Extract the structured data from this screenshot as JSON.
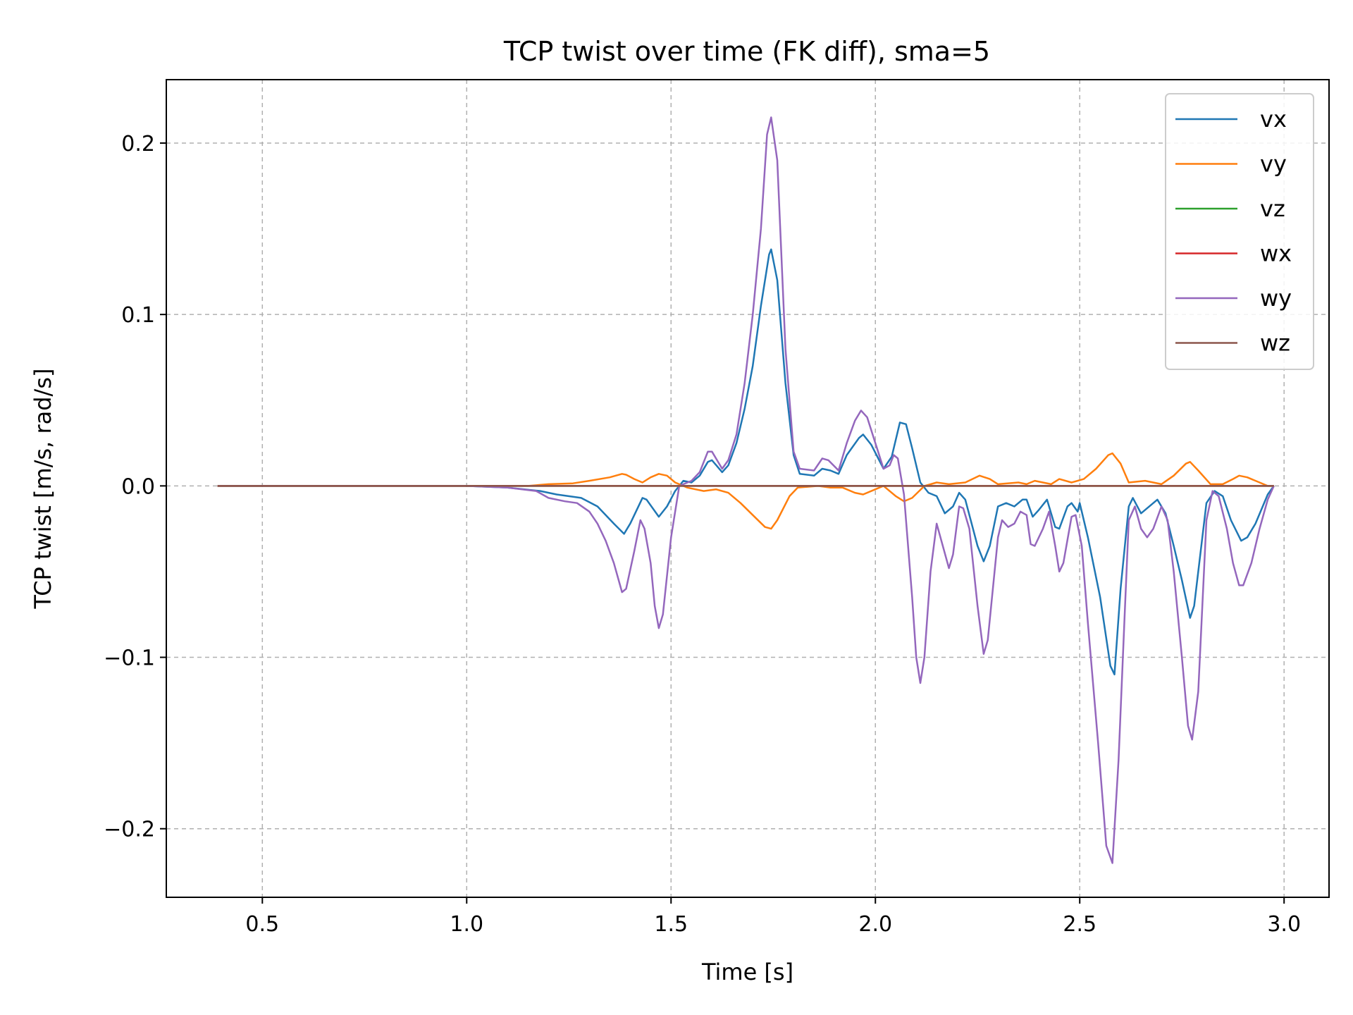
{
  "chart_data": {
    "type": "line",
    "title": "TCP twist over time (FK diff), sma=5",
    "xlabel": "Time [s]",
    "ylabel": "TCP twist [m/s, rad/s]",
    "xlim": [
      0.265,
      3.11
    ],
    "ylim": [
      -0.24,
      0.237
    ],
    "xticks": [
      0.5,
      1.0,
      1.5,
      2.0,
      2.5,
      3.0
    ],
    "xtick_labels": [
      "0.5",
      "1.0",
      "1.5",
      "2.0",
      "2.5",
      "3.0"
    ],
    "yticks": [
      0.2,
      0.1,
      0.0,
      -0.1,
      -0.2
    ],
    "ytick_labels": [
      "0.2",
      "0.1",
      "0.0",
      "−0.1",
      "−0.2"
    ],
    "grid": true,
    "legend_position": "upper right",
    "series": [
      {
        "name": "vx",
        "color": "#1f77b4",
        "points": [
          [
            0.39,
            0
          ],
          [
            1.0,
            0
          ],
          [
            1.1,
            -0.001
          ],
          [
            1.18,
            -0.003
          ],
          [
            1.22,
            -0.005
          ],
          [
            1.28,
            -0.007
          ],
          [
            1.32,
            -0.012
          ],
          [
            1.36,
            -0.022
          ],
          [
            1.385,
            -0.028
          ],
          [
            1.4,
            -0.022
          ],
          [
            1.43,
            -0.007
          ],
          [
            1.44,
            -0.008
          ],
          [
            1.47,
            -0.018
          ],
          [
            1.49,
            -0.012
          ],
          [
            1.51,
            -0.003
          ],
          [
            1.53,
            0.003
          ],
          [
            1.55,
            0.002
          ],
          [
            1.57,
            0.006
          ],
          [
            1.59,
            0.014
          ],
          [
            1.6,
            0.015
          ],
          [
            1.625,
            0.008
          ],
          [
            1.64,
            0.012
          ],
          [
            1.66,
            0.025
          ],
          [
            1.68,
            0.045
          ],
          [
            1.7,
            0.07
          ],
          [
            1.72,
            0.105
          ],
          [
            1.74,
            0.135
          ],
          [
            1.745,
            0.138
          ],
          [
            1.76,
            0.12
          ],
          [
            1.78,
            0.06
          ],
          [
            1.8,
            0.018
          ],
          [
            1.815,
            0.007
          ],
          [
            1.85,
            0.006
          ],
          [
            1.87,
            0.01
          ],
          [
            1.89,
            0.009
          ],
          [
            1.91,
            0.007
          ],
          [
            1.93,
            0.018
          ],
          [
            1.96,
            0.028
          ],
          [
            1.97,
            0.03
          ],
          [
            1.99,
            0.024
          ],
          [
            2.02,
            0.01
          ],
          [
            2.04,
            0.017
          ],
          [
            2.06,
            0.037
          ],
          [
            2.075,
            0.036
          ],
          [
            2.09,
            0.022
          ],
          [
            2.11,
            0.002
          ],
          [
            2.13,
            -0.004
          ],
          [
            2.15,
            -0.006
          ],
          [
            2.17,
            -0.016
          ],
          [
            2.19,
            -0.012
          ],
          [
            2.205,
            -0.004
          ],
          [
            2.22,
            -0.008
          ],
          [
            2.25,
            -0.035
          ],
          [
            2.265,
            -0.044
          ],
          [
            2.28,
            -0.035
          ],
          [
            2.3,
            -0.012
          ],
          [
            2.32,
            -0.01
          ],
          [
            2.34,
            -0.012
          ],
          [
            2.36,
            -0.008
          ],
          [
            2.37,
            -0.008
          ],
          [
            2.385,
            -0.018
          ],
          [
            2.4,
            -0.014
          ],
          [
            2.42,
            -0.008
          ],
          [
            2.44,
            -0.024
          ],
          [
            2.45,
            -0.025
          ],
          [
            2.47,
            -0.012
          ],
          [
            2.48,
            -0.01
          ],
          [
            2.495,
            -0.015
          ],
          [
            2.5,
            -0.01
          ],
          [
            2.52,
            -0.03
          ],
          [
            2.55,
            -0.065
          ],
          [
            2.575,
            -0.105
          ],
          [
            2.585,
            -0.11
          ],
          [
            2.6,
            -0.06
          ],
          [
            2.62,
            -0.012
          ],
          [
            2.63,
            -0.007
          ],
          [
            2.65,
            -0.016
          ],
          [
            2.68,
            -0.01
          ],
          [
            2.69,
            -0.008
          ],
          [
            2.71,
            -0.016
          ],
          [
            2.73,
            -0.035
          ],
          [
            2.75,
            -0.055
          ],
          [
            2.77,
            -0.077
          ],
          [
            2.78,
            -0.07
          ],
          [
            2.81,
            -0.01
          ],
          [
            2.83,
            -0.003
          ],
          [
            2.85,
            -0.006
          ],
          [
            2.87,
            -0.02
          ],
          [
            2.895,
            -0.032
          ],
          [
            2.91,
            -0.03
          ],
          [
            2.93,
            -0.022
          ],
          [
            2.96,
            -0.005
          ],
          [
            2.975,
            0
          ]
        ]
      },
      {
        "name": "vy",
        "color": "#ff7f0e",
        "points": [
          [
            0.39,
            0
          ],
          [
            1.0,
            0
          ],
          [
            1.15,
            0
          ],
          [
            1.2,
            0.001
          ],
          [
            1.26,
            0.0015
          ],
          [
            1.3,
            0.003
          ],
          [
            1.35,
            0.005
          ],
          [
            1.38,
            0.007
          ],
          [
            1.39,
            0.0065
          ],
          [
            1.41,
            0.004
          ],
          [
            1.43,
            0.002
          ],
          [
            1.45,
            0.005
          ],
          [
            1.47,
            0.007
          ],
          [
            1.49,
            0.006
          ],
          [
            1.51,
            0.002
          ],
          [
            1.54,
            -0.001
          ],
          [
            1.58,
            -0.003
          ],
          [
            1.61,
            -0.002
          ],
          [
            1.64,
            -0.004
          ],
          [
            1.67,
            -0.01
          ],
          [
            1.7,
            -0.017
          ],
          [
            1.73,
            -0.024
          ],
          [
            1.745,
            -0.025
          ],
          [
            1.76,
            -0.02
          ],
          [
            1.79,
            -0.006
          ],
          [
            1.81,
            -0.001
          ],
          [
            1.86,
            0
          ],
          [
            1.89,
            -0.001
          ],
          [
            1.92,
            -0.001
          ],
          [
            1.95,
            -0.004
          ],
          [
            1.97,
            -0.005
          ],
          [
            2.0,
            -0.002
          ],
          [
            2.02,
            0
          ],
          [
            2.05,
            -0.006
          ],
          [
            2.07,
            -0.009
          ],
          [
            2.09,
            -0.007
          ],
          [
            2.12,
            0
          ],
          [
            2.15,
            0.002
          ],
          [
            2.18,
            0.001
          ],
          [
            2.22,
            0.002
          ],
          [
            2.255,
            0.006
          ],
          [
            2.28,
            0.004
          ],
          [
            2.3,
            0.001
          ],
          [
            2.35,
            0.002
          ],
          [
            2.37,
            0.001
          ],
          [
            2.39,
            0.003
          ],
          [
            2.43,
            0.001
          ],
          [
            2.45,
            0.004
          ],
          [
            2.48,
            0.002
          ],
          [
            2.51,
            0.004
          ],
          [
            2.54,
            0.01
          ],
          [
            2.57,
            0.018
          ],
          [
            2.58,
            0.019
          ],
          [
            2.6,
            0.013
          ],
          [
            2.62,
            0.002
          ],
          [
            2.66,
            0.003
          ],
          [
            2.7,
            0.001
          ],
          [
            2.73,
            0.006
          ],
          [
            2.76,
            0.013
          ],
          [
            2.77,
            0.014
          ],
          [
            2.79,
            0.009
          ],
          [
            2.82,
            0.001
          ],
          [
            2.85,
            0.001
          ],
          [
            2.875,
            0.004
          ],
          [
            2.89,
            0.006
          ],
          [
            2.91,
            0.005
          ],
          [
            2.94,
            0.002
          ],
          [
            2.96,
            0
          ],
          [
            2.975,
            0
          ]
        ]
      },
      {
        "name": "vz",
        "color": "#2ca02c",
        "points": [
          [
            0.39,
            0
          ],
          [
            2.975,
            0
          ]
        ]
      },
      {
        "name": "wx",
        "color": "#d62728",
        "points": [
          [
            0.39,
            0
          ],
          [
            2.975,
            0
          ]
        ]
      },
      {
        "name": "wy",
        "color": "#9467bd",
        "points": [
          [
            0.39,
            0
          ],
          [
            1.0,
            0
          ],
          [
            1.1,
            -0.001
          ],
          [
            1.17,
            -0.003
          ],
          [
            1.2,
            -0.007
          ],
          [
            1.24,
            -0.009
          ],
          [
            1.27,
            -0.01
          ],
          [
            1.3,
            -0.015
          ],
          [
            1.32,
            -0.022
          ],
          [
            1.34,
            -0.032
          ],
          [
            1.36,
            -0.045
          ],
          [
            1.38,
            -0.062
          ],
          [
            1.39,
            -0.06
          ],
          [
            1.41,
            -0.038
          ],
          [
            1.425,
            -0.02
          ],
          [
            1.435,
            -0.025
          ],
          [
            1.45,
            -0.045
          ],
          [
            1.46,
            -0.07
          ],
          [
            1.47,
            -0.083
          ],
          [
            1.48,
            -0.075
          ],
          [
            1.5,
            -0.03
          ],
          [
            1.52,
            0
          ],
          [
            1.55,
            0.003
          ],
          [
            1.57,
            0.008
          ],
          [
            1.59,
            0.02
          ],
          [
            1.6,
            0.02
          ],
          [
            1.625,
            0.01
          ],
          [
            1.64,
            0.015
          ],
          [
            1.66,
            0.03
          ],
          [
            1.68,
            0.06
          ],
          [
            1.7,
            0.1
          ],
          [
            1.72,
            0.15
          ],
          [
            1.735,
            0.205
          ],
          [
            1.745,
            0.215
          ],
          [
            1.76,
            0.19
          ],
          [
            1.78,
            0.08
          ],
          [
            1.8,
            0.02
          ],
          [
            1.815,
            0.01
          ],
          [
            1.85,
            0.009
          ],
          [
            1.87,
            0.016
          ],
          [
            1.885,
            0.015
          ],
          [
            1.91,
            0.009
          ],
          [
            1.93,
            0.025
          ],
          [
            1.95,
            0.038
          ],
          [
            1.965,
            0.044
          ],
          [
            1.98,
            0.04
          ],
          [
            2.0,
            0.025
          ],
          [
            2.02,
            0.01
          ],
          [
            2.035,
            0.012
          ],
          [
            2.045,
            0.018
          ],
          [
            2.055,
            0.016
          ],
          [
            2.07,
            -0.005
          ],
          [
            2.09,
            -0.065
          ],
          [
            2.1,
            -0.1
          ],
          [
            2.11,
            -0.115
          ],
          [
            2.12,
            -0.1
          ],
          [
            2.135,
            -0.05
          ],
          [
            2.15,
            -0.022
          ],
          [
            2.165,
            -0.035
          ],
          [
            2.18,
            -0.048
          ],
          [
            2.19,
            -0.04
          ],
          [
            2.205,
            -0.012
          ],
          [
            2.215,
            -0.013
          ],
          [
            2.23,
            -0.025
          ],
          [
            2.25,
            -0.07
          ],
          [
            2.265,
            -0.098
          ],
          [
            2.275,
            -0.09
          ],
          [
            2.3,
            -0.03
          ],
          [
            2.31,
            -0.02
          ],
          [
            2.325,
            -0.024
          ],
          [
            2.34,
            -0.022
          ],
          [
            2.355,
            -0.015
          ],
          [
            2.37,
            -0.017
          ],
          [
            2.38,
            -0.034
          ],
          [
            2.39,
            -0.035
          ],
          [
            2.41,
            -0.025
          ],
          [
            2.425,
            -0.015
          ],
          [
            2.44,
            -0.035
          ],
          [
            2.45,
            -0.05
          ],
          [
            2.46,
            -0.045
          ],
          [
            2.48,
            -0.018
          ],
          [
            2.49,
            -0.017
          ],
          [
            2.505,
            -0.035
          ],
          [
            2.52,
            -0.08
          ],
          [
            2.545,
            -0.15
          ],
          [
            2.565,
            -0.21
          ],
          [
            2.58,
            -0.22
          ],
          [
            2.595,
            -0.16
          ],
          [
            2.61,
            -0.075
          ],
          [
            2.62,
            -0.02
          ],
          [
            2.635,
            -0.012
          ],
          [
            2.65,
            -0.025
          ],
          [
            2.665,
            -0.03
          ],
          [
            2.68,
            -0.025
          ],
          [
            2.7,
            -0.012
          ],
          [
            2.715,
            -0.02
          ],
          [
            2.73,
            -0.05
          ],
          [
            2.75,
            -0.1
          ],
          [
            2.765,
            -0.14
          ],
          [
            2.775,
            -0.148
          ],
          [
            2.79,
            -0.12
          ],
          [
            2.8,
            -0.07
          ],
          [
            2.81,
            -0.02
          ],
          [
            2.825,
            -0.003
          ],
          [
            2.84,
            -0.006
          ],
          [
            2.86,
            -0.025
          ],
          [
            2.875,
            -0.045
          ],
          [
            2.89,
            -0.058
          ],
          [
            2.9,
            -0.058
          ],
          [
            2.92,
            -0.045
          ],
          [
            2.94,
            -0.025
          ],
          [
            2.96,
            -0.008
          ],
          [
            2.975,
            0
          ]
        ]
      },
      {
        "name": "wz",
        "color": "#8c564b",
        "points": [
          [
            0.39,
            0
          ],
          [
            2.975,
            0
          ]
        ]
      }
    ]
  }
}
